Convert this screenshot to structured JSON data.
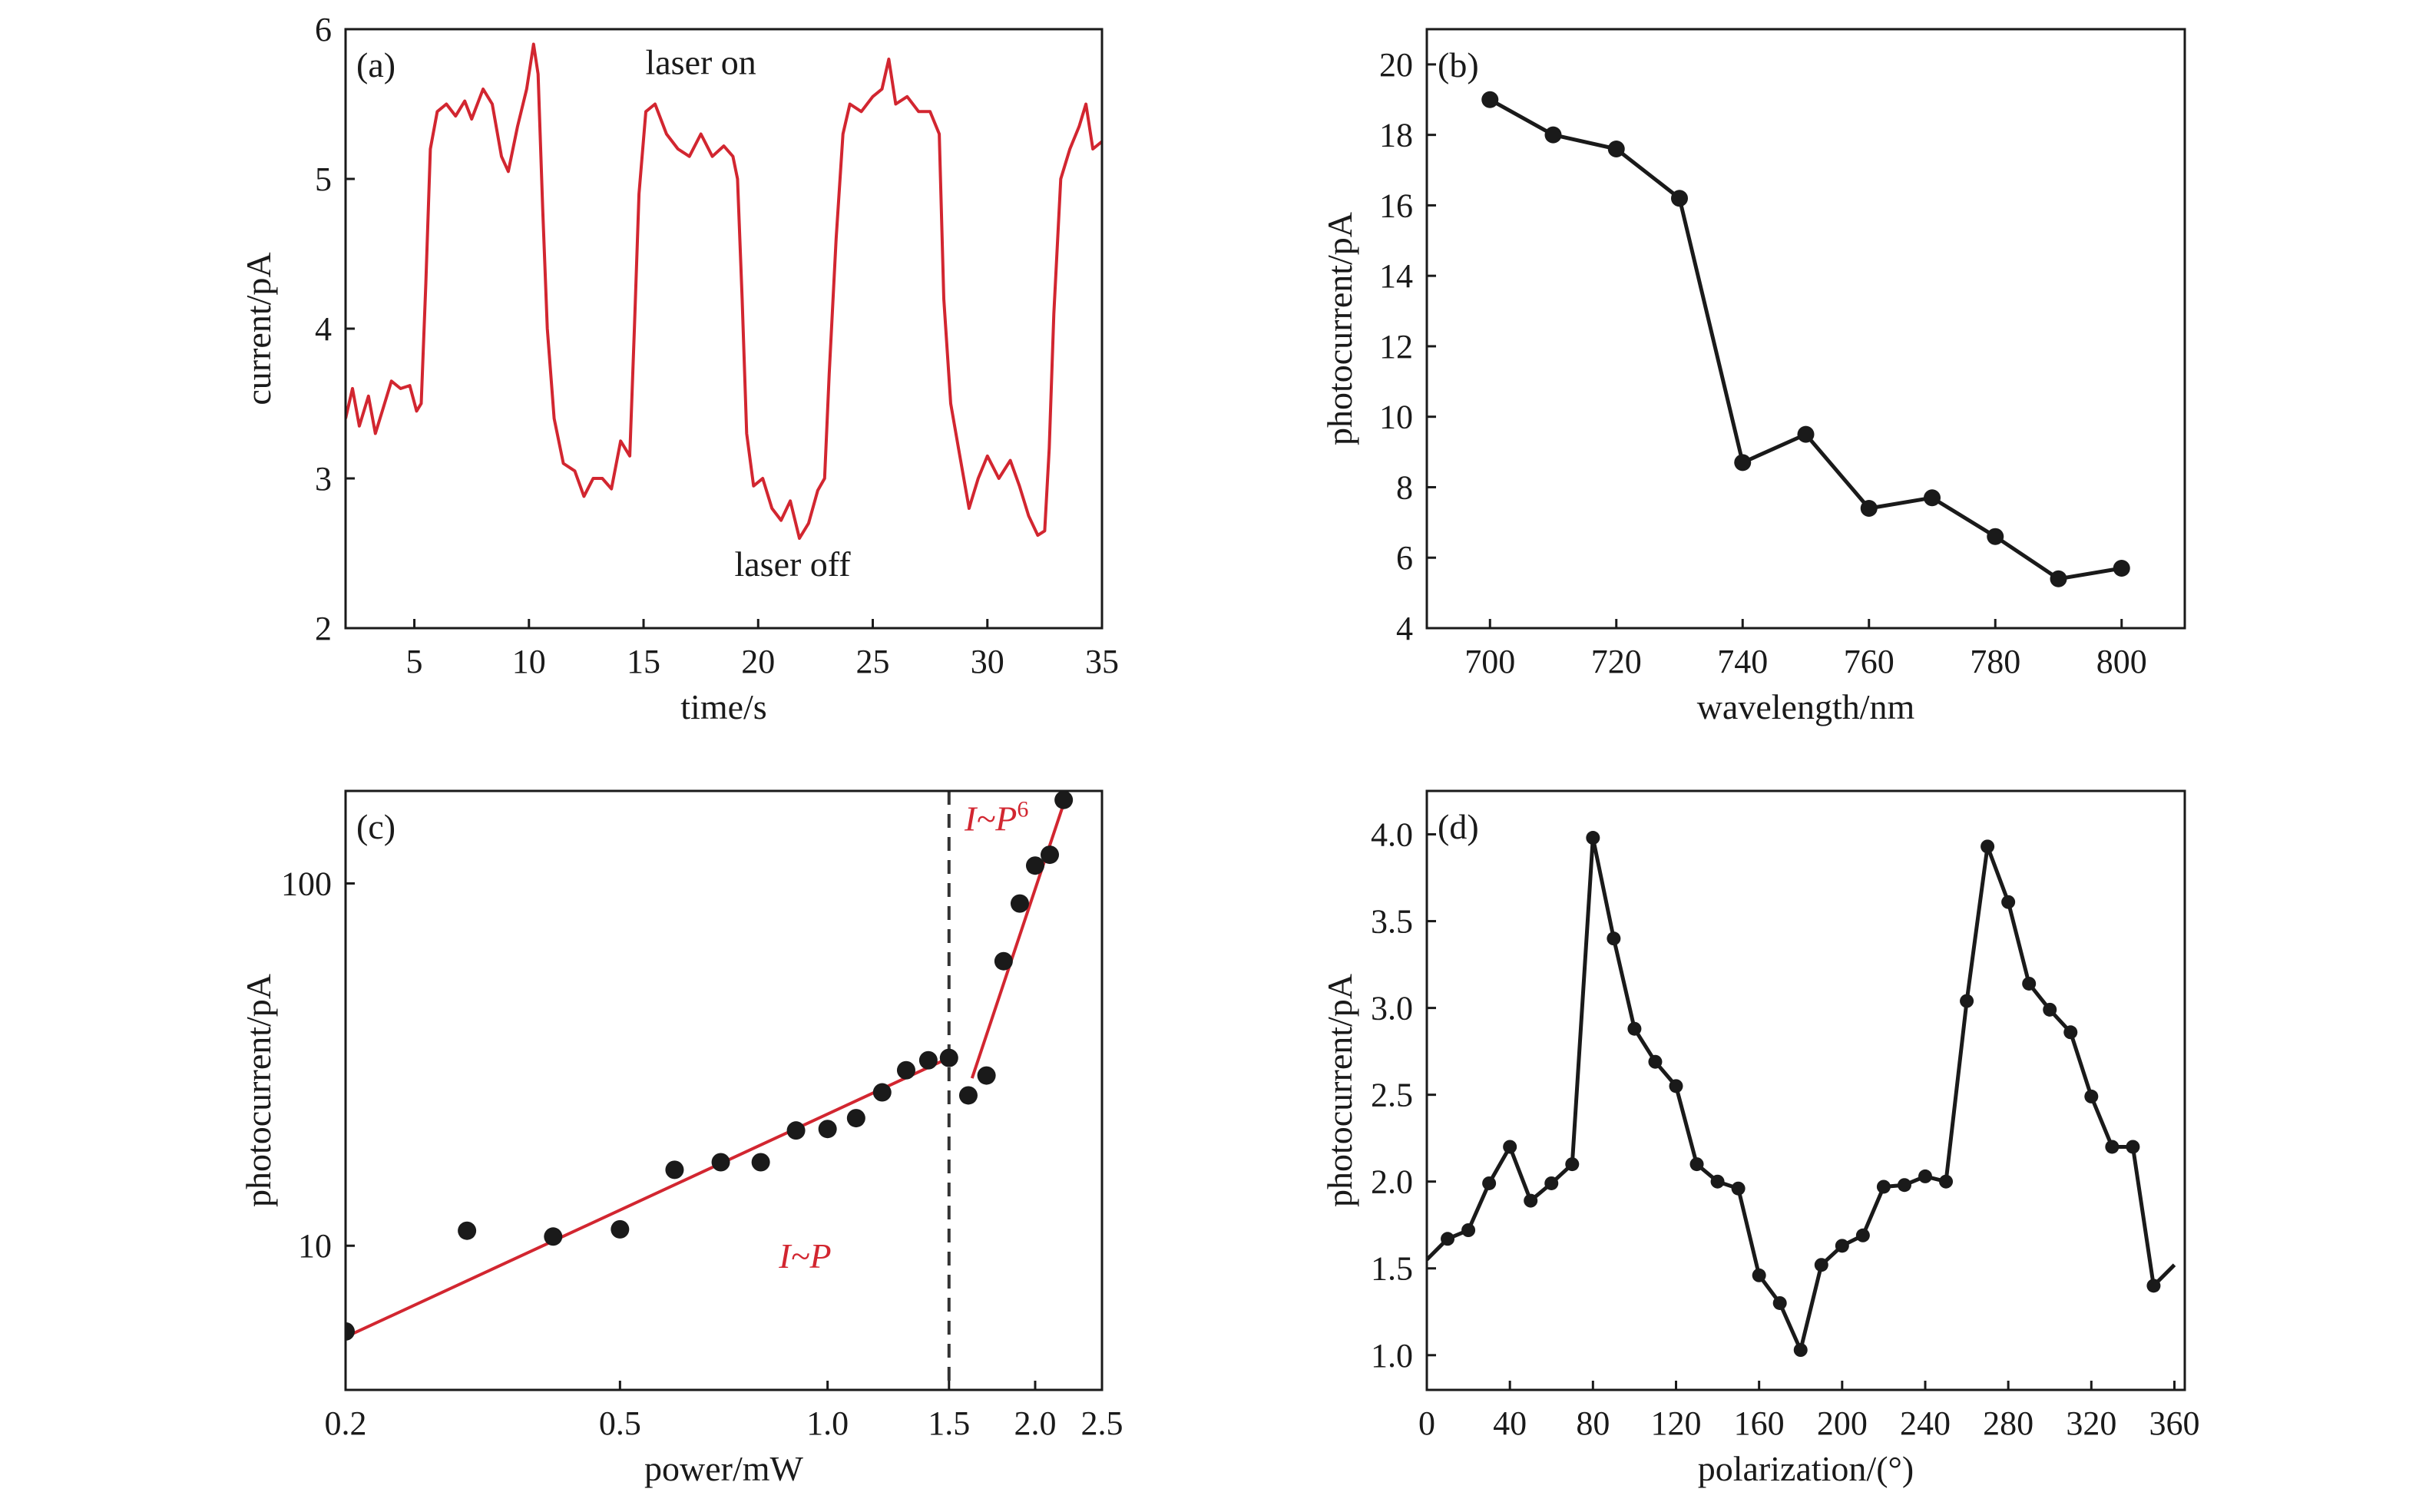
{
  "colors": {
    "red": "#d22630",
    "black": "#1a1a1a",
    "frame": "#1a1a1a"
  },
  "chart_data": [
    {
      "id": "a",
      "type": "line",
      "panel_label": "(a)",
      "xlabel": "time/s",
      "ylabel": "current/pA",
      "xlim": [
        2,
        35
      ],
      "ylim": [
        2,
        6
      ],
      "xticks": [
        5,
        10,
        15,
        20,
        25,
        30,
        35
      ],
      "yticks": [
        2,
        3,
        4,
        5,
        6
      ],
      "annotations": [
        {
          "text": "laser on",
          "x": 17.5,
          "y": 5.7
        },
        {
          "text": "laser off",
          "x": 21.5,
          "y": 2.35
        }
      ],
      "series": [
        {
          "color": "#d22630",
          "points": [
            [
              2,
              3.4
            ],
            [
              2.3,
              3.6
            ],
            [
              2.6,
              3.35
            ],
            [
              3,
              3.55
            ],
            [
              3.3,
              3.3
            ],
            [
              3.6,
              3.45
            ],
            [
              4,
              3.65
            ],
            [
              4.4,
              3.6
            ],
            [
              4.8,
              3.62
            ],
            [
              5.1,
              3.45
            ],
            [
              5.3,
              3.5
            ],
            [
              5.5,
              4.3
            ],
            [
              5.7,
              5.2
            ],
            [
              6,
              5.45
            ],
            [
              6.4,
              5.5
            ],
            [
              6.8,
              5.42
            ],
            [
              7.2,
              5.52
            ],
            [
              7.5,
              5.4
            ],
            [
              8,
              5.6
            ],
            [
              8.4,
              5.5
            ],
            [
              8.8,
              5.15
            ],
            [
              9.1,
              5.05
            ],
            [
              9.5,
              5.35
            ],
            [
              9.9,
              5.6
            ],
            [
              10.2,
              5.9
            ],
            [
              10.4,
              5.7
            ],
            [
              10.6,
              4.8
            ],
            [
              10.8,
              4.0
            ],
            [
              11.1,
              3.4
            ],
            [
              11.5,
              3.1
            ],
            [
              12,
              3.05
            ],
            [
              12.4,
              2.88
            ],
            [
              12.8,
              3.0
            ],
            [
              13.2,
              3.0
            ],
            [
              13.6,
              2.93
            ],
            [
              14,
              3.25
            ],
            [
              14.4,
              3.15
            ],
            [
              14.6,
              4.0
            ],
            [
              14.8,
              4.9
            ],
            [
              15.1,
              5.45
            ],
            [
              15.5,
              5.5
            ],
            [
              16,
              5.3
            ],
            [
              16.5,
              5.2
            ],
            [
              17,
              5.15
            ],
            [
              17.5,
              5.3
            ],
            [
              18,
              5.15
            ],
            [
              18.5,
              5.22
            ],
            [
              18.9,
              5.15
            ],
            [
              19.1,
              5.0
            ],
            [
              19.3,
              4.2
            ],
            [
              19.5,
              3.3
            ],
            [
              19.8,
              2.95
            ],
            [
              20.2,
              3.0
            ],
            [
              20.6,
              2.8
            ],
            [
              21,
              2.72
            ],
            [
              21.4,
              2.85
            ],
            [
              21.8,
              2.6
            ],
            [
              22.2,
              2.7
            ],
            [
              22.6,
              2.92
            ],
            [
              22.9,
              3.0
            ],
            [
              23.1,
              3.7
            ],
            [
              23.4,
              4.6
            ],
            [
              23.7,
              5.3
            ],
            [
              24,
              5.5
            ],
            [
              24.5,
              5.45
            ],
            [
              25,
              5.55
            ],
            [
              25.4,
              5.6
            ],
            [
              25.7,
              5.8
            ],
            [
              26,
              5.5
            ],
            [
              26.5,
              5.55
            ],
            [
              27,
              5.45
            ],
            [
              27.5,
              5.45
            ],
            [
              27.9,
              5.3
            ],
            [
              28.1,
              4.2
            ],
            [
              28.4,
              3.5
            ],
            [
              28.8,
              3.15
            ],
            [
              29.2,
              2.8
            ],
            [
              29.6,
              3.0
            ],
            [
              30,
              3.15
            ],
            [
              30.5,
              3.0
            ],
            [
              31,
              3.12
            ],
            [
              31.4,
              2.95
            ],
            [
              31.8,
              2.75
            ],
            [
              32.2,
              2.62
            ],
            [
              32.5,
              2.65
            ],
            [
              32.7,
              3.2
            ],
            [
              32.9,
              4.1
            ],
            [
              33.2,
              5.0
            ],
            [
              33.6,
              5.2
            ],
            [
              34,
              5.35
            ],
            [
              34.3,
              5.5
            ],
            [
              34.6,
              5.2
            ],
            [
              35,
              5.25
            ]
          ]
        }
      ]
    },
    {
      "id": "b",
      "type": "line",
      "panel_label": "(b)",
      "xlabel": "wavelength/nm",
      "ylabel": "photocurrent/pA",
      "xlim": [
        690,
        810
      ],
      "ylim": [
        4,
        21
      ],
      "xticks": [
        700,
        720,
        740,
        760,
        780,
        800
      ],
      "yticks": [
        4,
        6,
        8,
        10,
        12,
        14,
        16,
        18,
        20
      ],
      "series": [
        {
          "color": "#1a1a1a",
          "markers": true,
          "x": [
            700,
            710,
            720,
            730,
            740,
            750,
            760,
            770,
            780,
            790,
            800
          ],
          "y": [
            19.0,
            18.0,
            17.6,
            16.2,
            8.7,
            9.5,
            7.4,
            7.7,
            6.6,
            5.4,
            5.7
          ]
        }
      ]
    },
    {
      "id": "c",
      "type": "scatter",
      "panel_label": "(c)",
      "xlabel": "power/mW",
      "ylabel": "photocurrent/pA",
      "xscale": "log",
      "yscale": "log",
      "xlim": [
        0.2,
        2.5
      ],
      "ylim": [
        4,
        180
      ],
      "xticks": [
        0.2,
        0.5,
        1.0,
        1.5,
        2.0,
        2.5
      ],
      "xtick_labels": [
        "0.2",
        "0.5",
        "1.0",
        "1.5",
        "2.0",
        "2.5"
      ],
      "yticks": [
        10,
        100
      ],
      "ytick_labels": [
        "10",
        "100"
      ],
      "threshold_x": 1.5,
      "series": [
        {
          "color": "#1a1a1a",
          "x": [
            0.2,
            0.3,
            0.4,
            0.5,
            0.6,
            0.7,
            0.8,
            0.9,
            1.0,
            1.1,
            1.2,
            1.3,
            1.4,
            1.5,
            1.6,
            1.7,
            1.8,
            1.9,
            2.0,
            2.1,
            2.2
          ],
          "y": [
            5.8,
            11,
            10.6,
            11.1,
            16.2,
            17,
            17,
            20.8,
            21,
            22.5,
            26.5,
            30.5,
            32.5,
            33,
            26,
            29.5,
            61,
            88,
            112,
            120,
            170
          ]
        }
      ],
      "fits": [
        {
          "label_prefix": "I~P",
          "label_sup": "",
          "color": "#d22630",
          "x": [
            0.2,
            1.5
          ],
          "y": [
            5.6,
            33
          ],
          "label_at": [
            0.85,
            8.7
          ]
        },
        {
          "label_prefix": "I~P",
          "label_sup": "6",
          "color": "#d22630",
          "x": [
            1.62,
            2.22
          ],
          "y": [
            29,
            175
          ],
          "label_at": [
            1.58,
            140
          ]
        }
      ]
    },
    {
      "id": "d",
      "type": "line",
      "panel_label": "(d)",
      "xlabel": "polarization/(°)",
      "ylabel": "photocurrent/pA",
      "xlim": [
        0,
        365
      ],
      "ylim": [
        0.8,
        4.25
      ],
      "xticks": [
        0,
        40,
        80,
        120,
        160,
        200,
        240,
        280,
        320,
        360
      ],
      "yticks": [
        1.0,
        1.5,
        2.0,
        2.5,
        3.0,
        3.5,
        4.0
      ],
      "ytick_labels": [
        "1.0",
        "1.5",
        "2.0",
        "2.5",
        "3.0",
        "3.5",
        "4.0"
      ],
      "series": [
        {
          "color": "#1a1a1a",
          "markers": true,
          "x": [
            10,
            20,
            30,
            40,
            50,
            60,
            70,
            80,
            90,
            100,
            110,
            120,
            130,
            140,
            150,
            160,
            170,
            180,
            190,
            200,
            210,
            220,
            230,
            240,
            250,
            260,
            270,
            280,
            290,
            300,
            310,
            320,
            330,
            340,
            350
          ],
          "y": [
            1.67,
            1.72,
            1.99,
            2.2,
            1.89,
            1.99,
            2.1,
            3.98,
            3.4,
            2.88,
            2.69,
            2.55,
            2.1,
            2.0,
            1.96,
            1.46,
            1.3,
            1.03,
            1.52,
            1.63,
            1.69,
            1.97,
            1.98,
            2.03,
            2.0,
            3.04,
            3.93,
            3.61,
            3.14,
            2.99,
            2.86,
            2.49,
            2.2,
            2.2,
            1.4
          ],
          "line_x": [
            0,
            10,
            20,
            30,
            40,
            50,
            60,
            70,
            80,
            90,
            100,
            110,
            120,
            130,
            140,
            150,
            160,
            170,
            180,
            190,
            200,
            210,
            220,
            230,
            240,
            250,
            260,
            270,
            280,
            290,
            300,
            310,
            320,
            330,
            340,
            350,
            360
          ],
          "line_y": [
            1.55,
            1.67,
            1.72,
            1.99,
            2.2,
            1.89,
            1.99,
            2.1,
            3.98,
            3.4,
            2.88,
            2.69,
            2.55,
            2.1,
            2.0,
            1.96,
            1.46,
            1.3,
            1.03,
            1.52,
            1.63,
            1.69,
            1.97,
            1.98,
            2.03,
            2.0,
            3.04,
            3.93,
            3.61,
            3.14,
            2.99,
            2.86,
            2.49,
            2.2,
            2.2,
            1.4,
            1.52
          ]
        }
      ]
    }
  ]
}
